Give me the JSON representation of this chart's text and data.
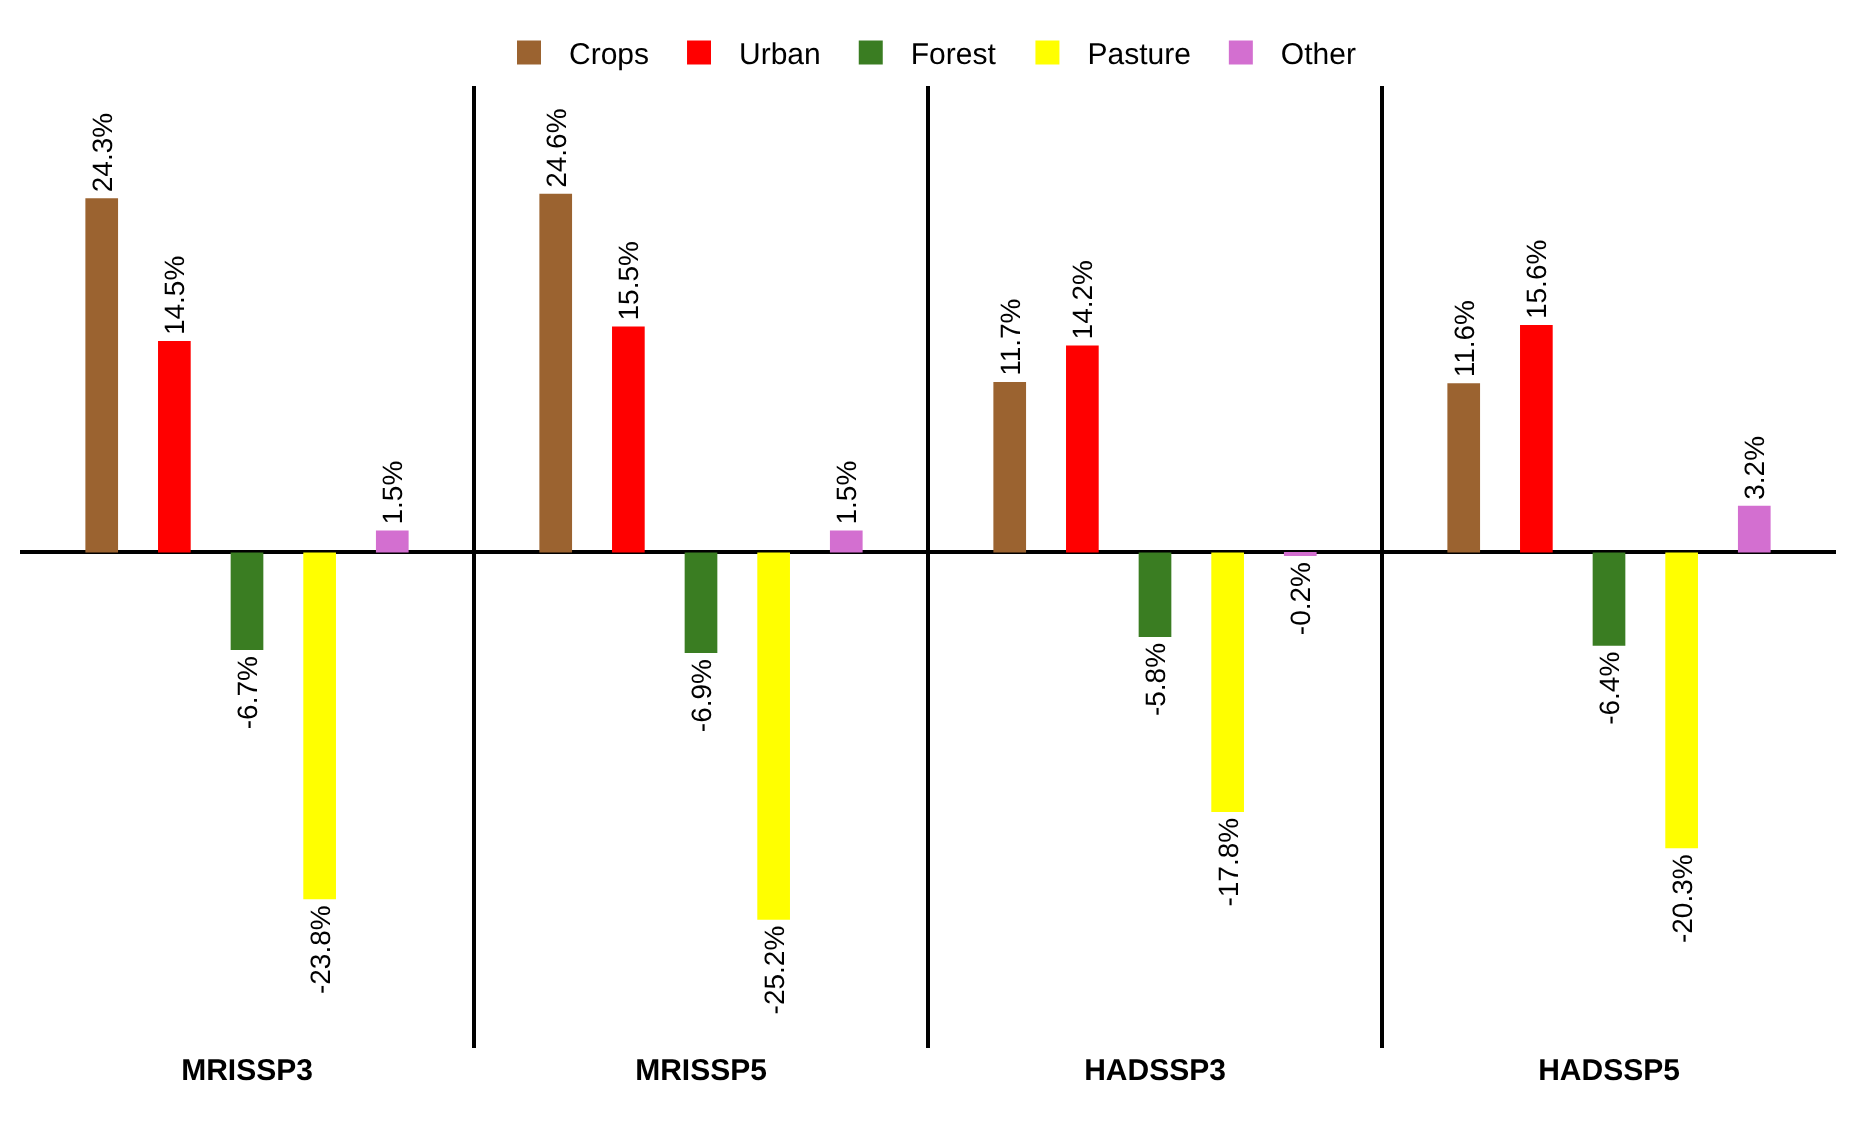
{
  "chart_data": {
    "type": "bar",
    "categories": [
      "MRISSP3",
      "MRISSP5",
      "HADSSP3",
      "HADSSP5"
    ],
    "series": [
      {
        "name": "Crops",
        "color": "#9b6330",
        "values": [
          24.3,
          24.6,
          11.7,
          11.6
        ],
        "value_labels": [
          "24.3%",
          "24.6%",
          "11.7%",
          "11.6%"
        ]
      },
      {
        "name": "Urban",
        "color": "#ff0000",
        "values": [
          14.5,
          15.5,
          14.2,
          15.6
        ],
        "value_labels": [
          "14.5%",
          "15.5%",
          "14.2%",
          "15.6%"
        ]
      },
      {
        "name": "Forest",
        "color": "#3a7d22",
        "values": [
          -6.7,
          -6.9,
          -5.8,
          -6.4
        ],
        "value_labels": [
          "-6.7%",
          "-6.9%",
          "-5.8%",
          "-6.4%"
        ]
      },
      {
        "name": "Pasture",
        "color": "#ffff00",
        "values": [
          -23.8,
          -25.2,
          -17.8,
          -20.3
        ],
        "value_labels": [
          "-23.8%",
          "-25.2%",
          "-17.8%",
          "-20.3%"
        ]
      },
      {
        "name": "Other",
        "color": "#d36fd0",
        "values": [
          1.5,
          1.5,
          -0.2,
          3.2
        ],
        "value_labels": [
          "1.5%",
          "1.5%",
          "-0.2%",
          "3.2%"
        ]
      }
    ],
    "ylim": [
      -34,
      32
    ],
    "grid": "x",
    "legend": "top"
  }
}
